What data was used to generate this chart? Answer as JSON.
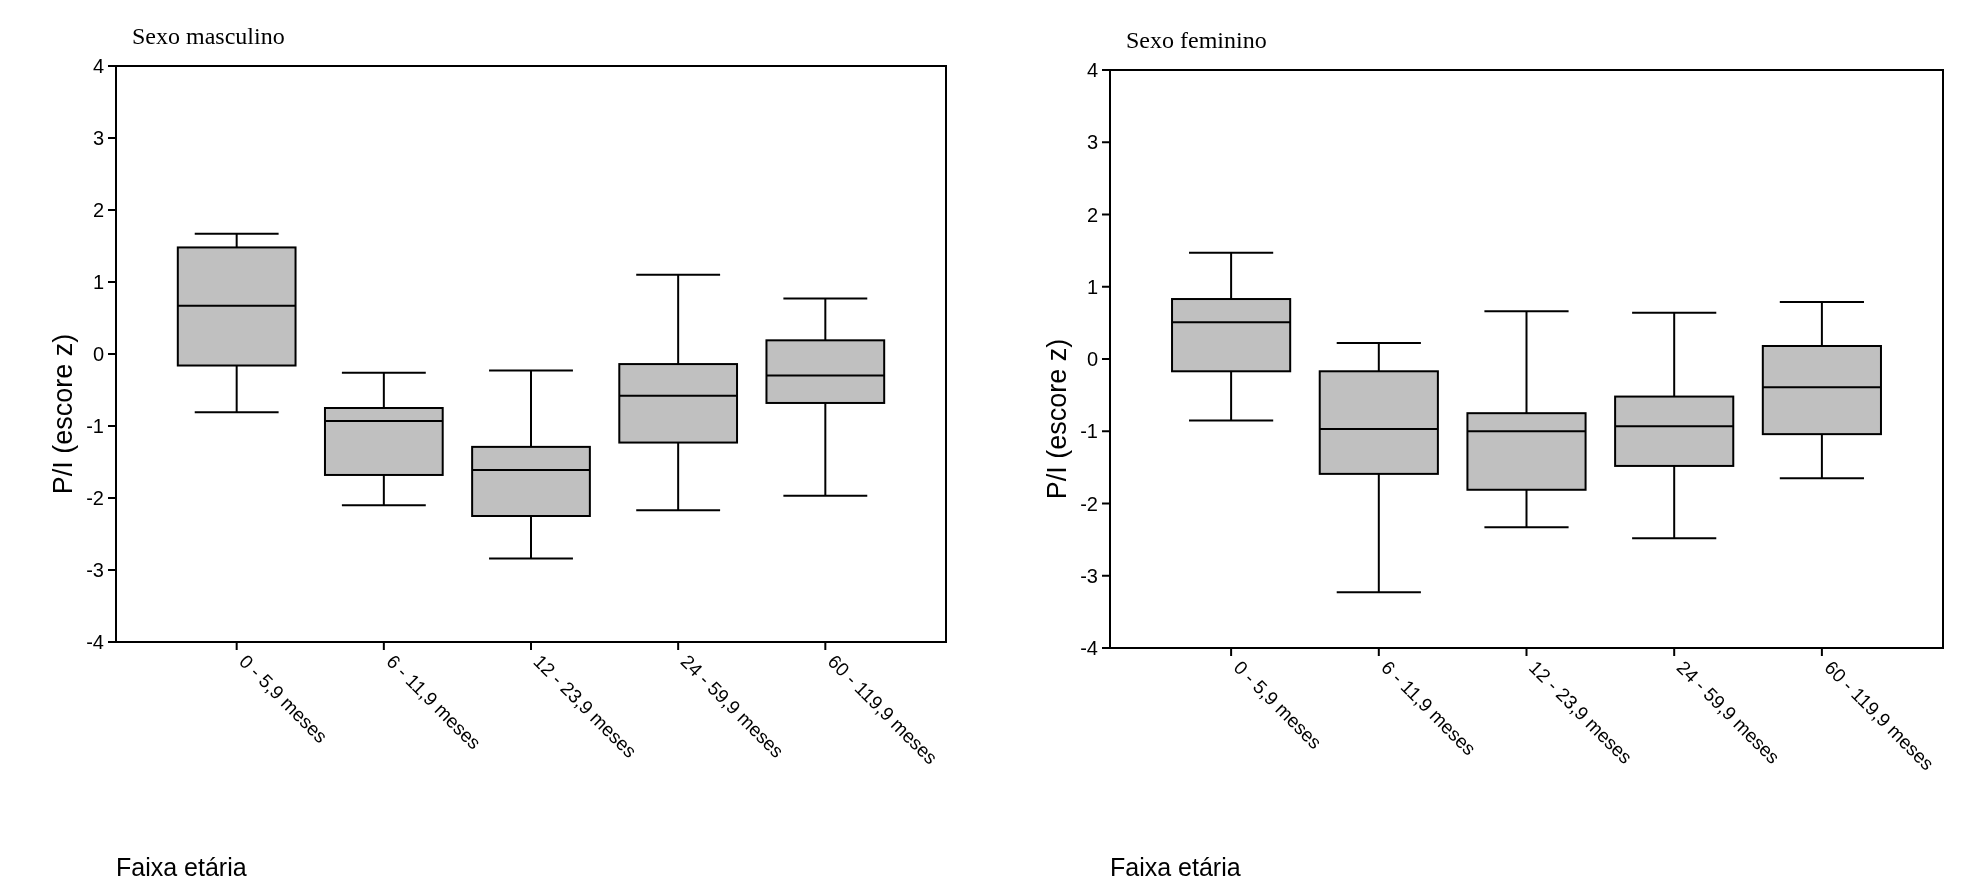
{
  "chart_data": [
    {
      "type": "box",
      "title": "Sexo masculino",
      "xlabel": "Faixa etária",
      "ylabel": "P/I (escore z)",
      "categories": [
        "0 - 5,9 meses",
        "6 - 11,9 meses",
        "12 - 23,9 meses",
        "24 - 59,9 meses",
        "60 - 119,9 meses"
      ],
      "color": "#c0c0c0",
      "ylim": [
        -4,
        4
      ],
      "yticks": [
        -4,
        -3,
        -2,
        -1,
        0,
        1,
        2,
        3,
        4
      ],
      "boxes": [
        {
          "low": -0.81,
          "q1": -0.16,
          "median": 0.67,
          "q3": 1.48,
          "high": 1.67
        },
        {
          "low": -2.1,
          "q1": -1.68,
          "median": -0.93,
          "q3": -0.75,
          "high": -0.26
        },
        {
          "low": -2.84,
          "q1": -2.25,
          "median": -1.61,
          "q3": -1.29,
          "high": -0.23
        },
        {
          "low": -2.17,
          "q1": -1.23,
          "median": -0.58,
          "q3": -0.14,
          "high": 1.1
        },
        {
          "low": -1.97,
          "q1": -0.68,
          "median": -0.3,
          "q3": 0.19,
          "high": 0.77
        }
      ]
    },
    {
      "type": "box",
      "title": "Sexo feminino",
      "xlabel": "Faixa etária",
      "ylabel": "P/I (escore z)",
      "categories": [
        "0 - 5,9 meses",
        "6 - 11,9 meses",
        "12 - 23,9 meses",
        "24 - 59,9 meses",
        "60 - 119,9 meses"
      ],
      "color": "#c0c0c0",
      "ylim": [
        -4,
        4
      ],
      "yticks": [
        -4,
        -3,
        -2,
        -1,
        0,
        1,
        2,
        3,
        4
      ],
      "boxes": [
        {
          "low": -0.85,
          "q1": -0.17,
          "median": 0.51,
          "q3": 0.83,
          "high": 1.47
        },
        {
          "low": -3.23,
          "q1": -1.59,
          "median": -0.97,
          "q3": -0.17,
          "high": 0.22
        },
        {
          "low": -2.33,
          "q1": -1.81,
          "median": -1.0,
          "q3": -0.75,
          "high": 0.66
        },
        {
          "low": -2.48,
          "q1": -1.48,
          "median": -0.93,
          "q3": -0.52,
          "high": 0.64
        },
        {
          "low": -1.65,
          "q1": -1.04,
          "median": -0.39,
          "q3": 0.18,
          "high": 0.79
        }
      ]
    }
  ]
}
